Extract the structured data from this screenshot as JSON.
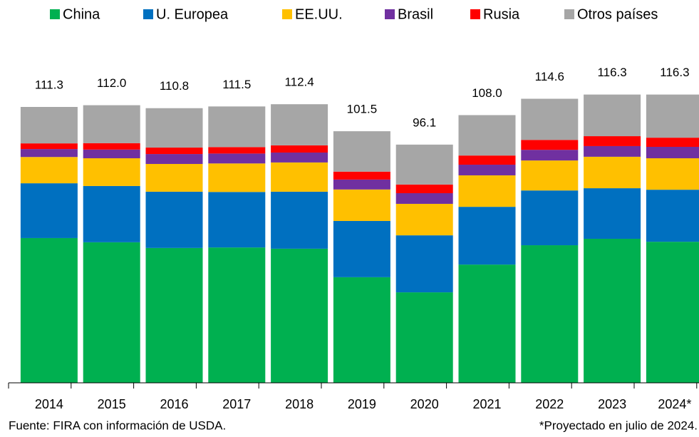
{
  "chart_data": {
    "type": "stacked_bar",
    "categories": [
      "2014",
      "2015",
      "2016",
      "2017",
      "2018",
      "2019",
      "2020",
      "2021",
      "2022",
      "2023",
      "2024*"
    ],
    "series": [
      {
        "name": "China",
        "color": "#00b050",
        "values": [
          58.4,
          56.7,
          54.4,
          54.6,
          54.1,
          42.6,
          36.5,
          47.7,
          55.5,
          58.1,
          56.9
        ]
      },
      {
        "name": "U. Europea",
        "color": "#0070c0",
        "values": [
          22.1,
          22.7,
          22.7,
          22.4,
          23.0,
          22.7,
          23.0,
          23.3,
          22.1,
          20.4,
          21.0
        ]
      },
      {
        "name": "EE.UU.",
        "color": "#ffc000",
        "values": [
          10.6,
          11.2,
          11.2,
          11.5,
          11.8,
          12.7,
          12.7,
          12.7,
          12.1,
          12.7,
          12.7
        ]
      },
      {
        "name": "Brasil",
        "color": "#7030a0",
        "values": [
          3.2,
          3.5,
          4.0,
          4.0,
          4.0,
          4.0,
          4.3,
          4.3,
          4.3,
          4.3,
          4.6
        ]
      },
      {
        "name": "Rusia",
        "color": "#ff0000",
        "values": [
          2.3,
          2.6,
          2.6,
          2.6,
          2.9,
          3.2,
          3.5,
          3.7,
          4.0,
          4.0,
          3.7
        ]
      },
      {
        "name": "Otros países",
        "color": "#a6a6a6",
        "values": [
          14.7,
          15.3,
          15.9,
          16.4,
          16.6,
          16.3,
          16.1,
          16.3,
          16.6,
          16.8,
          17.4
        ]
      }
    ],
    "totals": [
      111.3,
      112.0,
      110.8,
      111.5,
      112.4,
      101.5,
      96.1,
      108.0,
      114.6,
      116.3,
      116.3
    ],
    "value_labels": [
      "111.3",
      "112.0",
      "110.8",
      "111.5",
      "112.4",
      "101.5",
      "96.1",
      "108.0",
      "114.6",
      "116.3",
      "116.3"
    ],
    "legend": "top",
    "source": "Fuente: FIRA con información de USDA.",
    "note": "*Proyectado en julio de 2024."
  }
}
